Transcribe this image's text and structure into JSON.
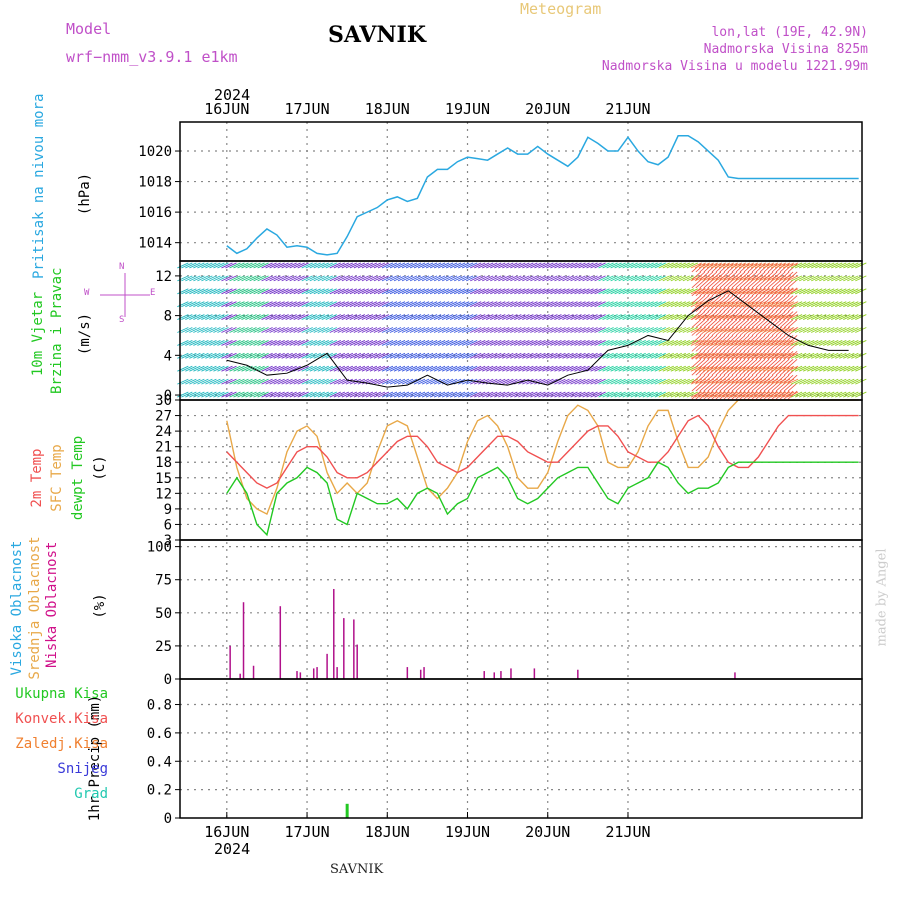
{
  "header": {
    "title": "SAVNIK",
    "subtitle": "Meteogram",
    "model_label": "Model",
    "model_name": "wrf−nmm_v3.9.1  e1km",
    "location": "lon,lat (19E, 42.9N)",
    "altitude": "Nadmorska Visina 825m",
    "model_altitude": "Nadmorska Visina u modelu 1221.99m",
    "footer_station": "SAVNIK",
    "credit": "made by Angel",
    "year": "2024"
  },
  "colors": {
    "pressure": "#2aa8e0",
    "temp2m": "#f05050",
    "sfc": "#e8a848",
    "dew": "#22c822",
    "cloud": "#b0108a",
    "precip": "#22c822",
    "title": "#c050c8"
  },
  "panel_labels": {
    "pressure": {
      "name": "Pritisak na nivou mora",
      "unit": "(hPa)"
    },
    "wind": {
      "name1": "10m Vjetar",
      "name2": "Brzina i Pravac",
      "unit": "(m/s)",
      "compass_n": "N",
      "compass_e": "E",
      "compass_w": "W",
      "compass_s": "S"
    },
    "temp": {
      "l1": "2m Temp",
      "l2": "SFC Temp",
      "l3": "dewpt Temp",
      "unit": "(C)"
    },
    "cloud": {
      "l1": "Visoka Oblacnost",
      "l2": "Srednja Oblacnost",
      "l3": "Niska Oblacnost",
      "unit": "(%)"
    },
    "precip": {
      "unit": "1hr Precip (mm)",
      "legend": [
        "Ukupna Kisa",
        "Konvek.Kisa",
        "Zaledj.Kisa",
        "Snijeg",
        "Grad"
      ]
    }
  },
  "chart_data": [
    {
      "type": "line",
      "title": "Pritisak na nivou mora",
      "ylabel": "(hPa)",
      "x_tick_labels": [
        "16JUN",
        "17JUN",
        "18JUN",
        "19JUN",
        "20JUN",
        "21JUN"
      ],
      "ylim": [
        1012.8,
        1021.9
      ],
      "yticks": [
        1014,
        1016,
        1018,
        1020
      ],
      "series": [
        {
          "x_hours": [
            0,
            3,
            6,
            9,
            12,
            15,
            18,
            21,
            24,
            27,
            30,
            33,
            36,
            39,
            42,
            45,
            48,
            51,
            54,
            57,
            60,
            63,
            66,
            69,
            72,
            75,
            78,
            81,
            84,
            87,
            90,
            93,
            96,
            99,
            102,
            105,
            108,
            111,
            114,
            117,
            120,
            123,
            126,
            129,
            132,
            135,
            138,
            141,
            144,
            147,
            150,
            153,
            156,
            159,
            162,
            165,
            168,
            171,
            174,
            177,
            180,
            183,
            186,
            189
          ],
          "values": [
            1013.8,
            1013.3,
            1013.6,
            1014.3,
            1014.9,
            1014.5,
            1013.7,
            1013.8,
            1013.7,
            1013.3,
            1013.2,
            1013.3,
            1014.4,
            1015.7,
            1016.0,
            1016.3,
            1016.8,
            1017.0,
            1016.7,
            1016.9,
            1018.3,
            1018.8,
            1018.8,
            1019.3,
            1019.6,
            1019.5,
            1019.4,
            1019.8,
            1020.2,
            1019.8,
            1019.8,
            1020.3,
            1019.8,
            1019.4,
            1019.0,
            1019.6,
            1020.9,
            1020.5,
            1020.0,
            1020.0,
            1020.9,
            1020.0,
            1019.3,
            1019.1,
            1019.6,
            1021.0,
            1021.0,
            1020.6,
            1020.0,
            1019.4,
            1018.3,
            1018.2,
            1018.2,
            1018.2,
            1018.2,
            1018.2,
            1018.2,
            1018.2,
            1018.2,
            1018.2,
            1018.2,
            1018.2,
            1018.2,
            1018.2
          ]
        }
      ]
    },
    {
      "type": "scatter",
      "title": "10m Vjetar Brzina i Pravac",
      "ylabel": "(m/s)",
      "ylim": [
        -0.5,
        13.5
      ],
      "yticks": [
        0,
        4,
        8,
        12
      ],
      "series": [
        {
          "name": "wind speed",
          "x_hours": [
            0,
            6,
            12,
            18,
            24,
            30,
            36,
            42,
            48,
            54,
            60,
            66,
            72,
            78,
            84,
            90,
            96,
            102,
            108,
            114,
            120,
            126,
            132,
            138,
            144,
            150,
            156,
            162,
            168,
            174,
            180,
            186
          ],
          "values": [
            3.5,
            3.0,
            2.0,
            2.2,
            3.0,
            4.2,
            1.5,
            1.2,
            0.8,
            1.0,
            2.0,
            1.0,
            1.5,
            1.2,
            1.0,
            1.5,
            1.0,
            2.0,
            2.5,
            4.5,
            5.0,
            6.0,
            5.5,
            8.0,
            9.5,
            10.5,
            9.0,
            7.5,
            6.0,
            5.0,
            4.5,
            4.5
          ]
        }
      ]
    },
    {
      "type": "line",
      "ylabel": "(C)",
      "ylim": [
        3,
        30
      ],
      "yticks": [
        3,
        6,
        9,
        12,
        15,
        18,
        21,
        24,
        27,
        30
      ],
      "x_hours": [
        0,
        3,
        6,
        9,
        12,
        15,
        18,
        21,
        24,
        27,
        30,
        33,
        36,
        39,
        42,
        45,
        48,
        51,
        54,
        57,
        60,
        63,
        66,
        69,
        72,
        75,
        78,
        81,
        84,
        87,
        90,
        93,
        96,
        99,
        102,
        105,
        108,
        111,
        114,
        117,
        120,
        123,
        126,
        129,
        132,
        135,
        138,
        141,
        144,
        147,
        150,
        153,
        156,
        159,
        162,
        165,
        168,
        171,
        174,
        177,
        180,
        183,
        186,
        189
      ],
      "series": [
        {
          "name": "2m Temp",
          "values": [
            20,
            18,
            16,
            14,
            13,
            14,
            17,
            20,
            21,
            21,
            19,
            16,
            15,
            15,
            16,
            18,
            20,
            22,
            23,
            23,
            21,
            18,
            17,
            16,
            17,
            19,
            21,
            23,
            23,
            22,
            20,
            19,
            18,
            18,
            20,
            22,
            24,
            25,
            25,
            23,
            20,
            19,
            18,
            18,
            20,
            23,
            26,
            27,
            25,
            21,
            18,
            17,
            17,
            19,
            22,
            25,
            27,
            27,
            27,
            27,
            27,
            27,
            27,
            27
          ]
        },
        {
          "name": "SFC Temp",
          "values": [
            26,
            17,
            11,
            9,
            8,
            13,
            20,
            24,
            25,
            23,
            16,
            12,
            14,
            12,
            14,
            20,
            25,
            26,
            25,
            19,
            13,
            11,
            13,
            16,
            22,
            26,
            27,
            25,
            21,
            15,
            13,
            13,
            16,
            22,
            27,
            29,
            28,
            25,
            18,
            17,
            17,
            20,
            25,
            28,
            28,
            22,
            17,
            17,
            19,
            24,
            28,
            30,
            30,
            30,
            30,
            30,
            30,
            30,
            30,
            30,
            30,
            30,
            30,
            30
          ]
        },
        {
          "name": "dewpt Temp",
          "values": [
            12,
            15,
            12,
            6,
            4,
            12,
            14,
            15,
            17,
            16,
            14,
            7,
            6,
            12,
            11,
            10,
            10,
            11,
            9,
            12,
            13,
            12,
            8,
            10,
            11,
            15,
            16,
            17,
            15,
            11,
            10,
            11,
            13,
            15,
            16,
            17,
            17,
            14,
            11,
            10,
            13,
            14,
            15,
            18,
            17,
            14,
            12,
            13,
            13,
            14,
            17,
            18,
            18,
            18,
            18,
            18,
            18,
            18,
            18,
            18,
            18,
            18,
            18,
            18
          ]
        }
      ]
    },
    {
      "type": "bar",
      "ylabel": "(%)",
      "ylim": [
        0,
        105
      ],
      "yticks": [
        0,
        25,
        50,
        75,
        100
      ],
      "series": [
        {
          "name": "Niska Oblacnost",
          "x_hours": [
            1,
            4,
            5,
            8,
            16,
            21,
            22,
            26,
            27,
            30,
            32,
            33,
            35,
            38,
            39,
            54,
            58,
            59,
            77,
            80,
            82,
            85,
            92,
            105,
            152
          ],
          "values": [
            25,
            4,
            58,
            10,
            55,
            6,
            5,
            8,
            9,
            19,
            68,
            9,
            46,
            45,
            26,
            9,
            7,
            9,
            6,
            5,
            6,
            8,
            8,
            7,
            5
          ]
        }
      ]
    },
    {
      "type": "bar",
      "ylabel": "1hr Precip (mm)",
      "ylim": [
        0,
        0.98
      ],
      "yticks": [
        0,
        0.2,
        0.4,
        0.6,
        0.8
      ],
      "series": [
        {
          "name": "Ukupna Kisa",
          "x_hours": [
            36
          ],
          "values": [
            0.1
          ]
        }
      ]
    }
  ]
}
